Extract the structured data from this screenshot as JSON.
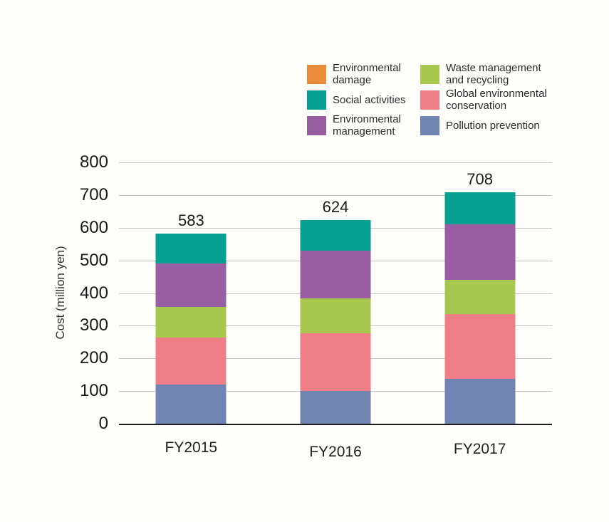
{
  "background": "#fffefb",
  "chart_data": {
    "type": "stacked-bar",
    "title": "",
    "ylabel": "Cost (million yen)",
    "xlabel": "",
    "ylim": [
      0,
      800
    ],
    "ytick_step": 100,
    "grid": true,
    "legend_position": "top-right",
    "categories": [
      "FY2015",
      "FY2016",
      "FY2017"
    ],
    "totals": [
      583,
      624,
      708
    ],
    "series": [
      {
        "key": "pollution-prevention",
        "name": "Pollution prevention",
        "color": "#7084B2",
        "values": [
          120,
          100,
          138
        ]
      },
      {
        "key": "global-environmental-conservation",
        "name": "Global environmental conservation",
        "color": "#EF7E87",
        "values": [
          143,
          176,
          197
        ]
      },
      {
        "key": "waste-management-and-recycling",
        "name": "Waste management and recycling",
        "color": "#A7C74F",
        "values": [
          95,
          107,
          105
        ]
      },
      {
        "key": "environmental-management",
        "name": "Environmental management",
        "color": "#995EA2",
        "values": [
          133,
          147,
          171
        ]
      },
      {
        "key": "social-activities",
        "name": "Social activities",
        "color": "#07A193",
        "values": [
          92,
          94,
          97
        ]
      },
      {
        "key": "environmental-damage",
        "name": "Environmental damage",
        "color": "#EA8D3A",
        "values": [
          0,
          0,
          0
        ]
      }
    ],
    "legend_columns": [
      [
        "environmental-damage",
        "social-activities",
        "environmental-management"
      ],
      [
        "waste-management-and-recycling",
        "global-environmental-conservation",
        "pollution-prevention"
      ]
    ]
  }
}
